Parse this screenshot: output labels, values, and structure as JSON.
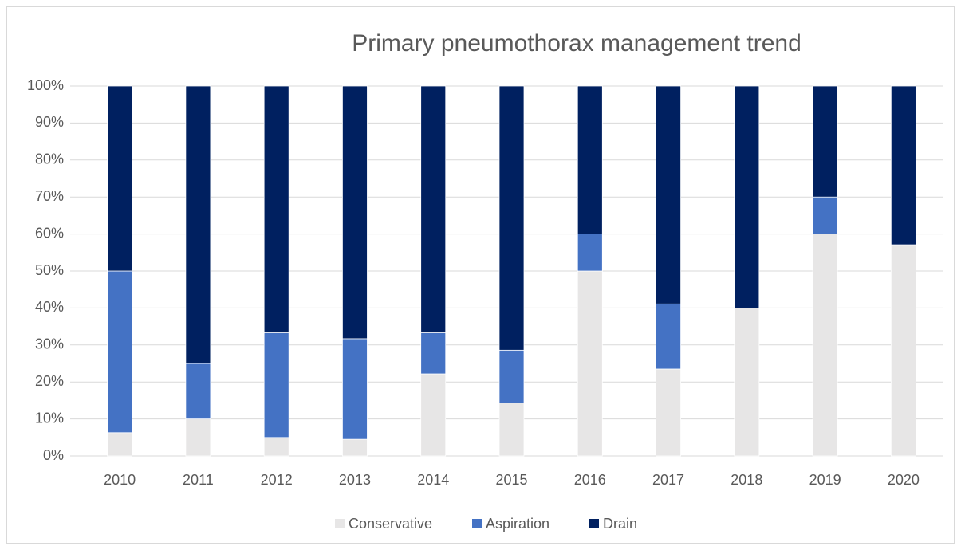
{
  "chart_data": {
    "type": "stacked_bar",
    "title": "Primary pneumothorax management trend",
    "categories": [
      "2010",
      "2011",
      "2012",
      "2013",
      "2014",
      "2015",
      "2016",
      "2017",
      "2018",
      "2019",
      "2020"
    ],
    "series": [
      {
        "name": "Conservative",
        "color": "#e7e6e6",
        "values": [
          6.3,
          10,
          5,
          4.5,
          22.2,
          14.3,
          50,
          23.5,
          40,
          60,
          57.1
        ]
      },
      {
        "name": "Aspiration",
        "color": "#4472c4",
        "values": [
          43.7,
          15,
          28.3,
          27.2,
          11.1,
          14.3,
          10,
          17.6,
          0,
          10,
          0
        ]
      },
      {
        "name": "Drain",
        "color": "#002060",
        "values": [
          50,
          75,
          66.7,
          68.3,
          66.7,
          71.4,
          40,
          58.9,
          60,
          30,
          42.9
        ]
      }
    ],
    "ylim": [
      0,
      100
    ],
    "yticks": [
      {
        "value": 0,
        "label": "0%"
      },
      {
        "value": 10,
        "label": "10%"
      },
      {
        "value": 20,
        "label": "20%"
      },
      {
        "value": 30,
        "label": "30%"
      },
      {
        "value": 40,
        "label": "40%"
      },
      {
        "value": 50,
        "label": "50%"
      },
      {
        "value": 60,
        "label": "60%"
      },
      {
        "value": 70,
        "label": "70%"
      },
      {
        "value": 80,
        "label": "80%"
      },
      {
        "value": 90,
        "label": "90%"
      },
      {
        "value": 100,
        "label": "100%"
      }
    ],
    "grid": true,
    "legend": "bottom"
  }
}
